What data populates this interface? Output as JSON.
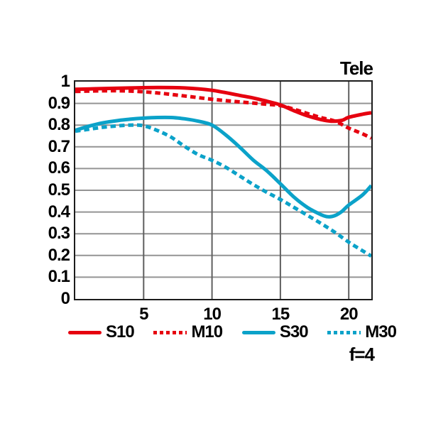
{
  "title": "Tele",
  "footer": "f=4",
  "colors": {
    "red": "#e6000f",
    "cyan": "#0ba2c9",
    "text": "#000000",
    "background": "#ffffff"
  },
  "legend": [
    {
      "label": "S10",
      "color": "#e6000f",
      "dash": false
    },
    {
      "label": "M10",
      "color": "#e6000f",
      "dash": true
    },
    {
      "label": "S30",
      "color": "#0ba2c9",
      "dash": false
    },
    {
      "label": "M30",
      "color": "#0ba2c9",
      "dash": true
    }
  ],
  "chart_data": {
    "type": "line",
    "title": "Tele",
    "annotation": "f=4",
    "xlabel": "",
    "ylabel": "",
    "xlim": [
      0,
      21.65
    ],
    "ylim": [
      0,
      1
    ],
    "grid": {
      "on": true,
      "h_color": "#949494",
      "v_color": "#5f5f5f",
      "border_color": "#1c1c1c"
    },
    "legend_position": "bottom",
    "x_ticks": [
      {
        "v": 5,
        "label": "5"
      },
      {
        "v": 10,
        "label": "10"
      },
      {
        "v": 15,
        "label": "15"
      },
      {
        "v": 20,
        "label": "20"
      }
    ],
    "y_ticks": [
      {
        "v": 0,
        "label": "0"
      },
      {
        "v": 0.1,
        "label": "0.1"
      },
      {
        "v": 0.2,
        "label": "0.2"
      },
      {
        "v": 0.3,
        "label": "0.3"
      },
      {
        "v": 0.4,
        "label": "0.4"
      },
      {
        "v": 0.5,
        "label": "0.5"
      },
      {
        "v": 0.6,
        "label": "0.6"
      },
      {
        "v": 0.7,
        "label": "0.7"
      },
      {
        "v": 0.8,
        "label": "0.8"
      },
      {
        "v": 0.9,
        "label": "0.9"
      },
      {
        "v": 1,
        "label": "1"
      }
    ],
    "series": [
      {
        "name": "S10",
        "color": "#e6000f",
        "style": "solid",
        "points": [
          [
            0,
            0.965
          ],
          [
            2,
            0.968
          ],
          [
            4,
            0.971
          ],
          [
            6,
            0.973
          ],
          [
            8,
            0.971
          ],
          [
            10,
            0.96
          ],
          [
            12,
            0.937
          ],
          [
            13,
            0.925
          ],
          [
            14,
            0.91
          ],
          [
            15,
            0.893
          ],
          [
            16,
            0.866
          ],
          [
            17,
            0.842
          ],
          [
            18,
            0.825
          ],
          [
            18.7,
            0.818
          ],
          [
            19.5,
            0.822
          ],
          [
            20,
            0.836
          ],
          [
            21,
            0.85
          ],
          [
            21.65,
            0.857
          ]
        ]
      },
      {
        "name": "M10",
        "color": "#e6000f",
        "style": "dashed",
        "points": [
          [
            0,
            0.955
          ],
          [
            2,
            0.958
          ],
          [
            4,
            0.957
          ],
          [
            6,
            0.948
          ],
          [
            8,
            0.934
          ],
          [
            10,
            0.919
          ],
          [
            12,
            0.907
          ],
          [
            14,
            0.896
          ],
          [
            15,
            0.89
          ],
          [
            16,
            0.873
          ],
          [
            17,
            0.853
          ],
          [
            18,
            0.834
          ],
          [
            19,
            0.818
          ],
          [
            20,
            0.786
          ],
          [
            21,
            0.76
          ],
          [
            21.65,
            0.74
          ]
        ]
      },
      {
        "name": "S30",
        "color": "#0ba2c9",
        "style": "solid",
        "points": [
          [
            0,
            0.776
          ],
          [
            1,
            0.795
          ],
          [
            2,
            0.81
          ],
          [
            3,
            0.82
          ],
          [
            4,
            0.827
          ],
          [
            5,
            0.832
          ],
          [
            6,
            0.835
          ],
          [
            7,
            0.835
          ],
          [
            8,
            0.829
          ],
          [
            9,
            0.818
          ],
          [
            10,
            0.8
          ],
          [
            11,
            0.755
          ],
          [
            12,
            0.7
          ],
          [
            13,
            0.64
          ],
          [
            14,
            0.59
          ],
          [
            15,
            0.53
          ],
          [
            16,
            0.468
          ],
          [
            17,
            0.42
          ],
          [
            18,
            0.387
          ],
          [
            18.5,
            0.378
          ],
          [
            19,
            0.384
          ],
          [
            19.5,
            0.403
          ],
          [
            20,
            0.432
          ],
          [
            21,
            0.478
          ],
          [
            21.65,
            0.522
          ]
        ]
      },
      {
        "name": "M30",
        "color": "#0ba2c9",
        "style": "dashed",
        "points": [
          [
            0,
            0.772
          ],
          [
            1,
            0.781
          ],
          [
            2,
            0.79
          ],
          [
            3,
            0.796
          ],
          [
            4,
            0.8
          ],
          [
            5,
            0.797
          ],
          [
            6,
            0.775
          ],
          [
            7,
            0.745
          ],
          [
            8,
            0.702
          ],
          [
            9,
            0.664
          ],
          [
            10,
            0.638
          ],
          [
            11,
            0.606
          ],
          [
            12,
            0.567
          ],
          [
            13,
            0.527
          ],
          [
            14,
            0.491
          ],
          [
            15,
            0.458
          ],
          [
            16,
            0.421
          ],
          [
            17,
            0.384
          ],
          [
            18,
            0.346
          ],
          [
            19,
            0.306
          ],
          [
            20,
            0.261
          ],
          [
            21,
            0.222
          ],
          [
            21.65,
            0.197
          ]
        ]
      }
    ]
  }
}
